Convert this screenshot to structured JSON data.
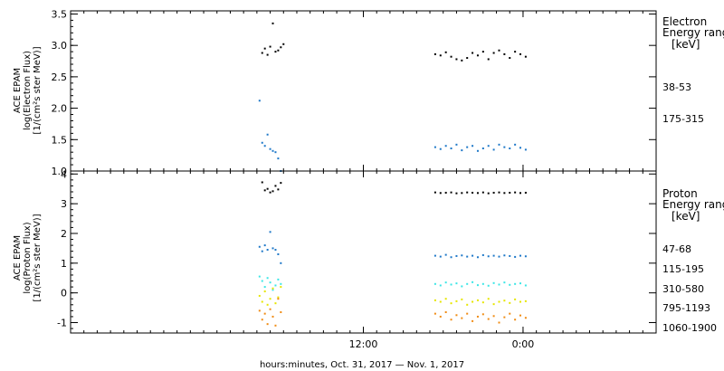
{
  "chart_data": [
    {
      "type": "scatter",
      "panel": "electron",
      "ylabel_lines": [
        "ACE EPAM",
        "log(Electron Flux)",
        "[1/(cm²s ster MeV)]"
      ],
      "ylim": [
        1.0,
        3.55
      ],
      "yticks": [
        1.0,
        1.5,
        2.0,
        2.5,
        3.0,
        3.5
      ],
      "ytick_labels": [
        "1.0",
        "1.5",
        "2.0",
        "2.5",
        "3.0",
        "3.5"
      ],
      "legend_title": [
        "Electron",
        "Energy range",
        "[keV]"
      ],
      "series": [
        {
          "name": "38-53",
          "color": "#000000",
          "x": [
            -7.6,
            -7.4,
            -7.2,
            -7.0,
            -6.8,
            -6.6,
            -6.4,
            -6.2,
            -6.0,
            5.4,
            5.8,
            6.2,
            6.6,
            7.0,
            7.4,
            7.8,
            8.2,
            8.6,
            9.0,
            9.4,
            9.8,
            10.2,
            10.6,
            11.0,
            11.4,
            11.8,
            12.2
          ],
          "y": [
            2.88,
            2.95,
            2.85,
            2.98,
            3.35,
            2.9,
            2.92,
            2.97,
            3.02,
            2.86,
            2.84,
            2.89,
            2.82,
            2.78,
            2.76,
            2.8,
            2.88,
            2.84,
            2.9,
            2.78,
            2.88,
            2.92,
            2.86,
            2.8,
            2.9,
            2.86,
            2.82
          ]
        },
        {
          "name": "175-315",
          "color": "#1e78c8",
          "x": [
            -7.8,
            -7.6,
            -7.4,
            -7.2,
            -7.0,
            -6.8,
            -6.6,
            -6.4,
            -6.2,
            5.4,
            5.8,
            6.2,
            6.6,
            7.0,
            7.4,
            7.8,
            8.2,
            8.6,
            9.0,
            9.4,
            9.8,
            10.2,
            10.6,
            11.0,
            11.4,
            11.8,
            12.2
          ],
          "y": [
            2.12,
            1.45,
            1.4,
            1.58,
            1.35,
            1.32,
            1.3,
            1.2,
            1.0,
            1.38,
            1.35,
            1.4,
            1.36,
            1.42,
            1.33,
            1.38,
            1.4,
            1.32,
            1.36,
            1.4,
            1.34,
            1.42,
            1.38,
            1.36,
            1.42,
            1.37,
            1.34
          ]
        }
      ]
    },
    {
      "type": "scatter",
      "panel": "proton",
      "ylabel_lines": [
        "ACE EPAM",
        "log(Proton Flux)",
        "[1/(cm²s ster MeV)]"
      ],
      "ylim": [
        -1.35,
        4.1
      ],
      "yticks": [
        -1,
        0,
        1,
        2,
        3,
        4
      ],
      "ytick_labels": [
        "-1",
        "0",
        "1",
        "2",
        "3",
        "4"
      ],
      "legend_title": [
        "Proton",
        "Energy range",
        "[keV]"
      ],
      "series": [
        {
          "name": "47-68",
          "color": "#000000",
          "x": [
            -7.6,
            -7.4,
            -7.2,
            -7.0,
            -6.8,
            -6.6,
            -6.4,
            -6.2,
            5.4,
            5.8,
            6.2,
            6.6,
            7.0,
            7.4,
            7.8,
            8.2,
            8.6,
            9.0,
            9.4,
            9.8,
            10.2,
            10.6,
            11.0,
            11.4,
            11.8,
            12.2
          ],
          "y": [
            3.72,
            3.45,
            3.5,
            3.38,
            3.42,
            3.6,
            3.48,
            3.7,
            3.38,
            3.36,
            3.37,
            3.38,
            3.35,
            3.36,
            3.38,
            3.37,
            3.36,
            3.38,
            3.35,
            3.37,
            3.38,
            3.36,
            3.37,
            3.38,
            3.36,
            3.37
          ]
        },
        {
          "name": "115-195",
          "color": "#1e78c8",
          "x": [
            -7.8,
            -7.6,
            -7.4,
            -7.2,
            -7.0,
            -6.8,
            -6.6,
            -6.4,
            -6.2,
            5.4,
            5.8,
            6.2,
            6.6,
            7.0,
            7.4,
            7.8,
            8.2,
            8.6,
            9.0,
            9.4,
            9.8,
            10.2,
            10.6,
            11.0,
            11.4,
            11.8,
            12.2
          ],
          "y": [
            1.55,
            1.4,
            1.6,
            1.45,
            2.05,
            1.5,
            1.45,
            1.3,
            1.0,
            1.25,
            1.22,
            1.28,
            1.2,
            1.24,
            1.26,
            1.22,
            1.25,
            1.2,
            1.27,
            1.23,
            1.25,
            1.22,
            1.26,
            1.24,
            1.21,
            1.25,
            1.23
          ]
        },
        {
          "name": "310-580",
          "color": "#3ce6e6",
          "x": [
            -7.8,
            -7.6,
            -7.4,
            -7.2,
            -7.0,
            -6.8,
            -6.6,
            -6.4,
            -6.2,
            5.4,
            5.8,
            6.2,
            6.6,
            7.0,
            7.4,
            7.8,
            8.2,
            8.6,
            9.0,
            9.4,
            9.8,
            10.2,
            10.6,
            11.0,
            11.4,
            11.8,
            12.2
          ],
          "y": [
            0.55,
            0.4,
            0.2,
            0.5,
            0.35,
            0.1,
            0.25,
            0.45,
            0.3,
            0.3,
            0.25,
            0.35,
            0.28,
            0.32,
            0.22,
            0.3,
            0.36,
            0.26,
            0.3,
            0.24,
            0.33,
            0.28,
            0.35,
            0.27,
            0.3,
            0.32,
            0.25
          ]
        },
        {
          "name": "795-1193",
          "color": "#e6e600",
          "x": [
            -7.8,
            -7.6,
            -7.4,
            -7.2,
            -7.0,
            -6.8,
            -6.6,
            -6.4,
            -6.2,
            5.4,
            5.8,
            6.2,
            6.6,
            7.0,
            7.4,
            7.8,
            8.2,
            8.6,
            9.0,
            9.4,
            9.8,
            10.2,
            10.6,
            11.0,
            11.4,
            11.8,
            12.2
          ],
          "y": [
            -0.1,
            -0.3,
            0.05,
            -0.4,
            -0.2,
            0.15,
            -0.35,
            -0.15,
            0.2,
            -0.25,
            -0.3,
            -0.2,
            -0.35,
            -0.28,
            -0.22,
            -0.4,
            -0.3,
            -0.25,
            -0.32,
            -0.2,
            -0.38,
            -0.3,
            -0.26,
            -0.34,
            -0.22,
            -0.3,
            -0.28
          ]
        },
        {
          "name": "1060-1900",
          "color": "#f08c14",
          "x": [
            -7.8,
            -7.6,
            -7.4,
            -7.2,
            -7.0,
            -6.8,
            -6.6,
            -6.4,
            -6.2,
            5.4,
            5.8,
            6.2,
            6.6,
            7.0,
            7.4,
            7.8,
            8.2,
            8.6,
            9.0,
            9.4,
            9.8,
            10.2,
            10.6,
            11.0,
            11.4,
            11.8,
            12.2
          ],
          "y": [
            -0.6,
            -0.9,
            -0.7,
            -1.05,
            -0.55,
            -0.8,
            -1.1,
            -0.2,
            -0.65,
            -0.7,
            -0.8,
            -0.65,
            -0.9,
            -0.75,
            -0.85,
            -0.7,
            -0.95,
            -0.8,
            -0.72,
            -0.88,
            -0.78,
            -1.0,
            -0.82,
            -0.7,
            -0.9,
            -0.76,
            -0.84
          ]
        }
      ]
    }
  ],
  "xaxis": {
    "xlim": [
      -22,
      22
    ],
    "major_ticks": [
      0,
      12
    ],
    "major_tick_labels": [
      "12:00",
      "0:00"
    ],
    "xlabel": "hours:minutes, Oct. 31, 2017 — Nov.  1, 2017"
  },
  "grid": false
}
